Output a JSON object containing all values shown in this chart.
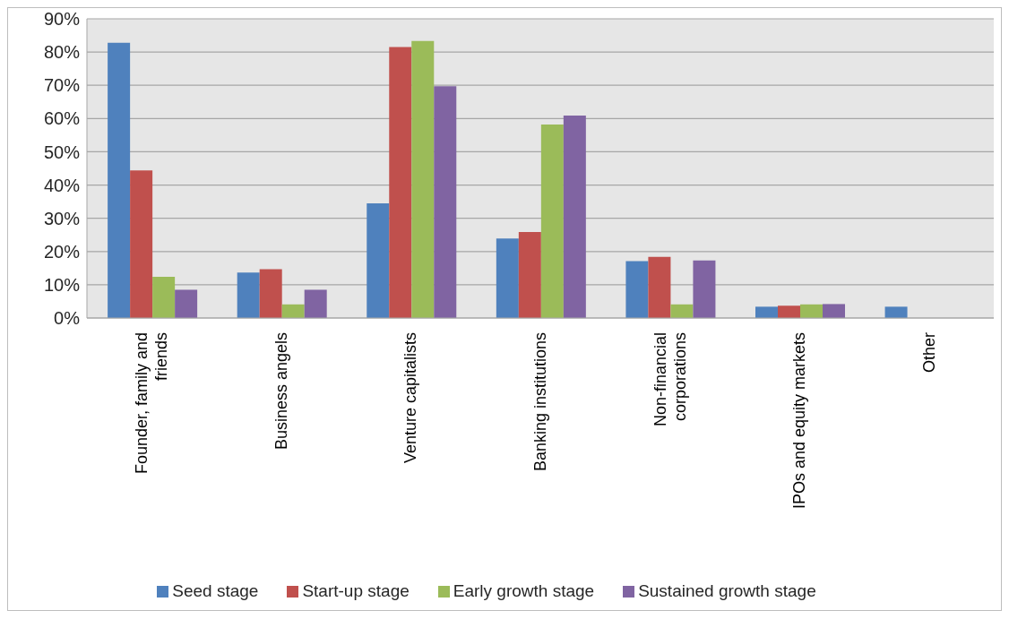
{
  "chart_data": {
    "type": "bar",
    "categories": [
      "Founder, family and friends",
      "Business angels",
      "Venture capitalists",
      "Banking institutions",
      "Non-financial corporations",
      "IPOs and equity markets",
      "Other"
    ],
    "series": [
      {
        "name": "Seed stage",
        "color": "#4f81bd",
        "values": [
          82.8,
          13.7,
          34.5,
          23.9,
          17.1,
          3.4,
          3.4
        ]
      },
      {
        "name": "Start-up stage",
        "color": "#c0504d",
        "values": [
          44.4,
          14.7,
          81.5,
          25.9,
          18.4,
          3.7,
          null
        ]
      },
      {
        "name": "Early growth stage",
        "color": "#9bbb59",
        "values": [
          12.4,
          4.1,
          83.3,
          58.2,
          4.1,
          4.1,
          null
        ]
      },
      {
        "name": "Sustained growth stage",
        "color": "#8064a2",
        "values": [
          8.5,
          8.5,
          69.7,
          60.9,
          17.3,
          4.2,
          null
        ]
      }
    ],
    "ylim": [
      0,
      90
    ],
    "yticks": [
      {
        "value": 0,
        "label": "0%"
      },
      {
        "value": 10,
        "label": "10%"
      },
      {
        "value": 20,
        "label": "20%"
      },
      {
        "value": 30,
        "label": "30%"
      },
      {
        "value": 40,
        "label": "40%"
      },
      {
        "value": 50,
        "label": "50%"
      },
      {
        "value": 60,
        "label": "60%"
      },
      {
        "value": 70,
        "label": "70%"
      },
      {
        "value": 80,
        "label": "80%"
      },
      {
        "value": 90,
        "label": "90%"
      }
    ],
    "grid": "y",
    "legend": "bottom"
  }
}
